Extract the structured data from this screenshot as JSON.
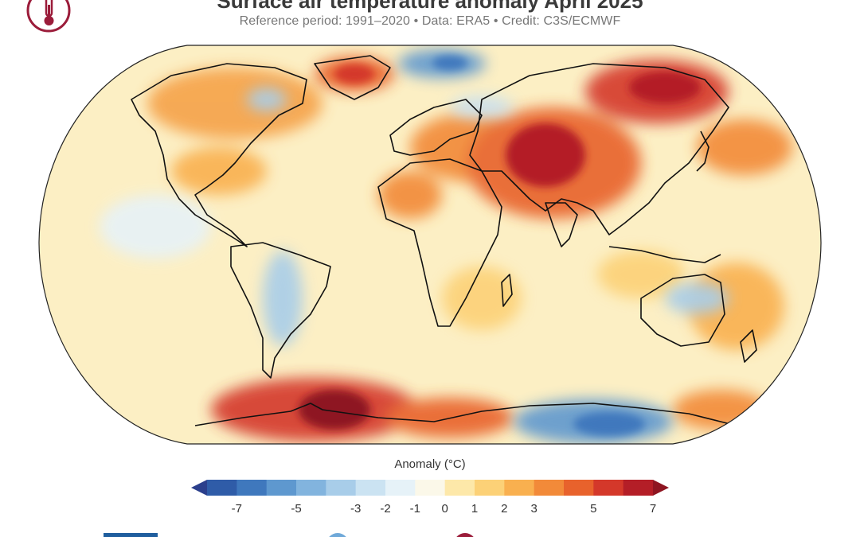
{
  "header": {
    "title": "Surface air temperature anomaly April 2025",
    "subtitle": "Reference period: 1991–2020 • Data: ERA5 • Credit: C3S/ECMWF"
  },
  "logo": {
    "icon": "thermometer-icon",
    "color": "#9b1c3a"
  },
  "legend": {
    "title": "Anomaly (°C)",
    "ticks": [
      "-7",
      "-5",
      "-3",
      "-2",
      "-1",
      "0",
      "1",
      "2",
      "3",
      "5",
      "7"
    ],
    "colors": [
      "#2b3f8c",
      "#2f5ca8",
      "#3f78bd",
      "#5e98cf",
      "#82b4de",
      "#a8cde9",
      "#cbe3f2",
      "#e6f2f8",
      "#fbf8e9",
      "#fde8a9",
      "#fcd177",
      "#f9b04f",
      "#f28a39",
      "#e8622c",
      "#d4382a",
      "#b41e27",
      "#8e1521"
    ]
  },
  "map": {
    "projection": "Equal Earth",
    "warm_color": "#e8622c",
    "hot_color": "#b41e27",
    "cool_color": "#82b4de",
    "cold_color": "#3f78bd",
    "base_color": "#fcefc4"
  },
  "footer": {
    "bar_color": "#1f5e9e",
    "circle_left_color": "#6fa9d9",
    "circle_right_color": "#9b1c3a"
  }
}
